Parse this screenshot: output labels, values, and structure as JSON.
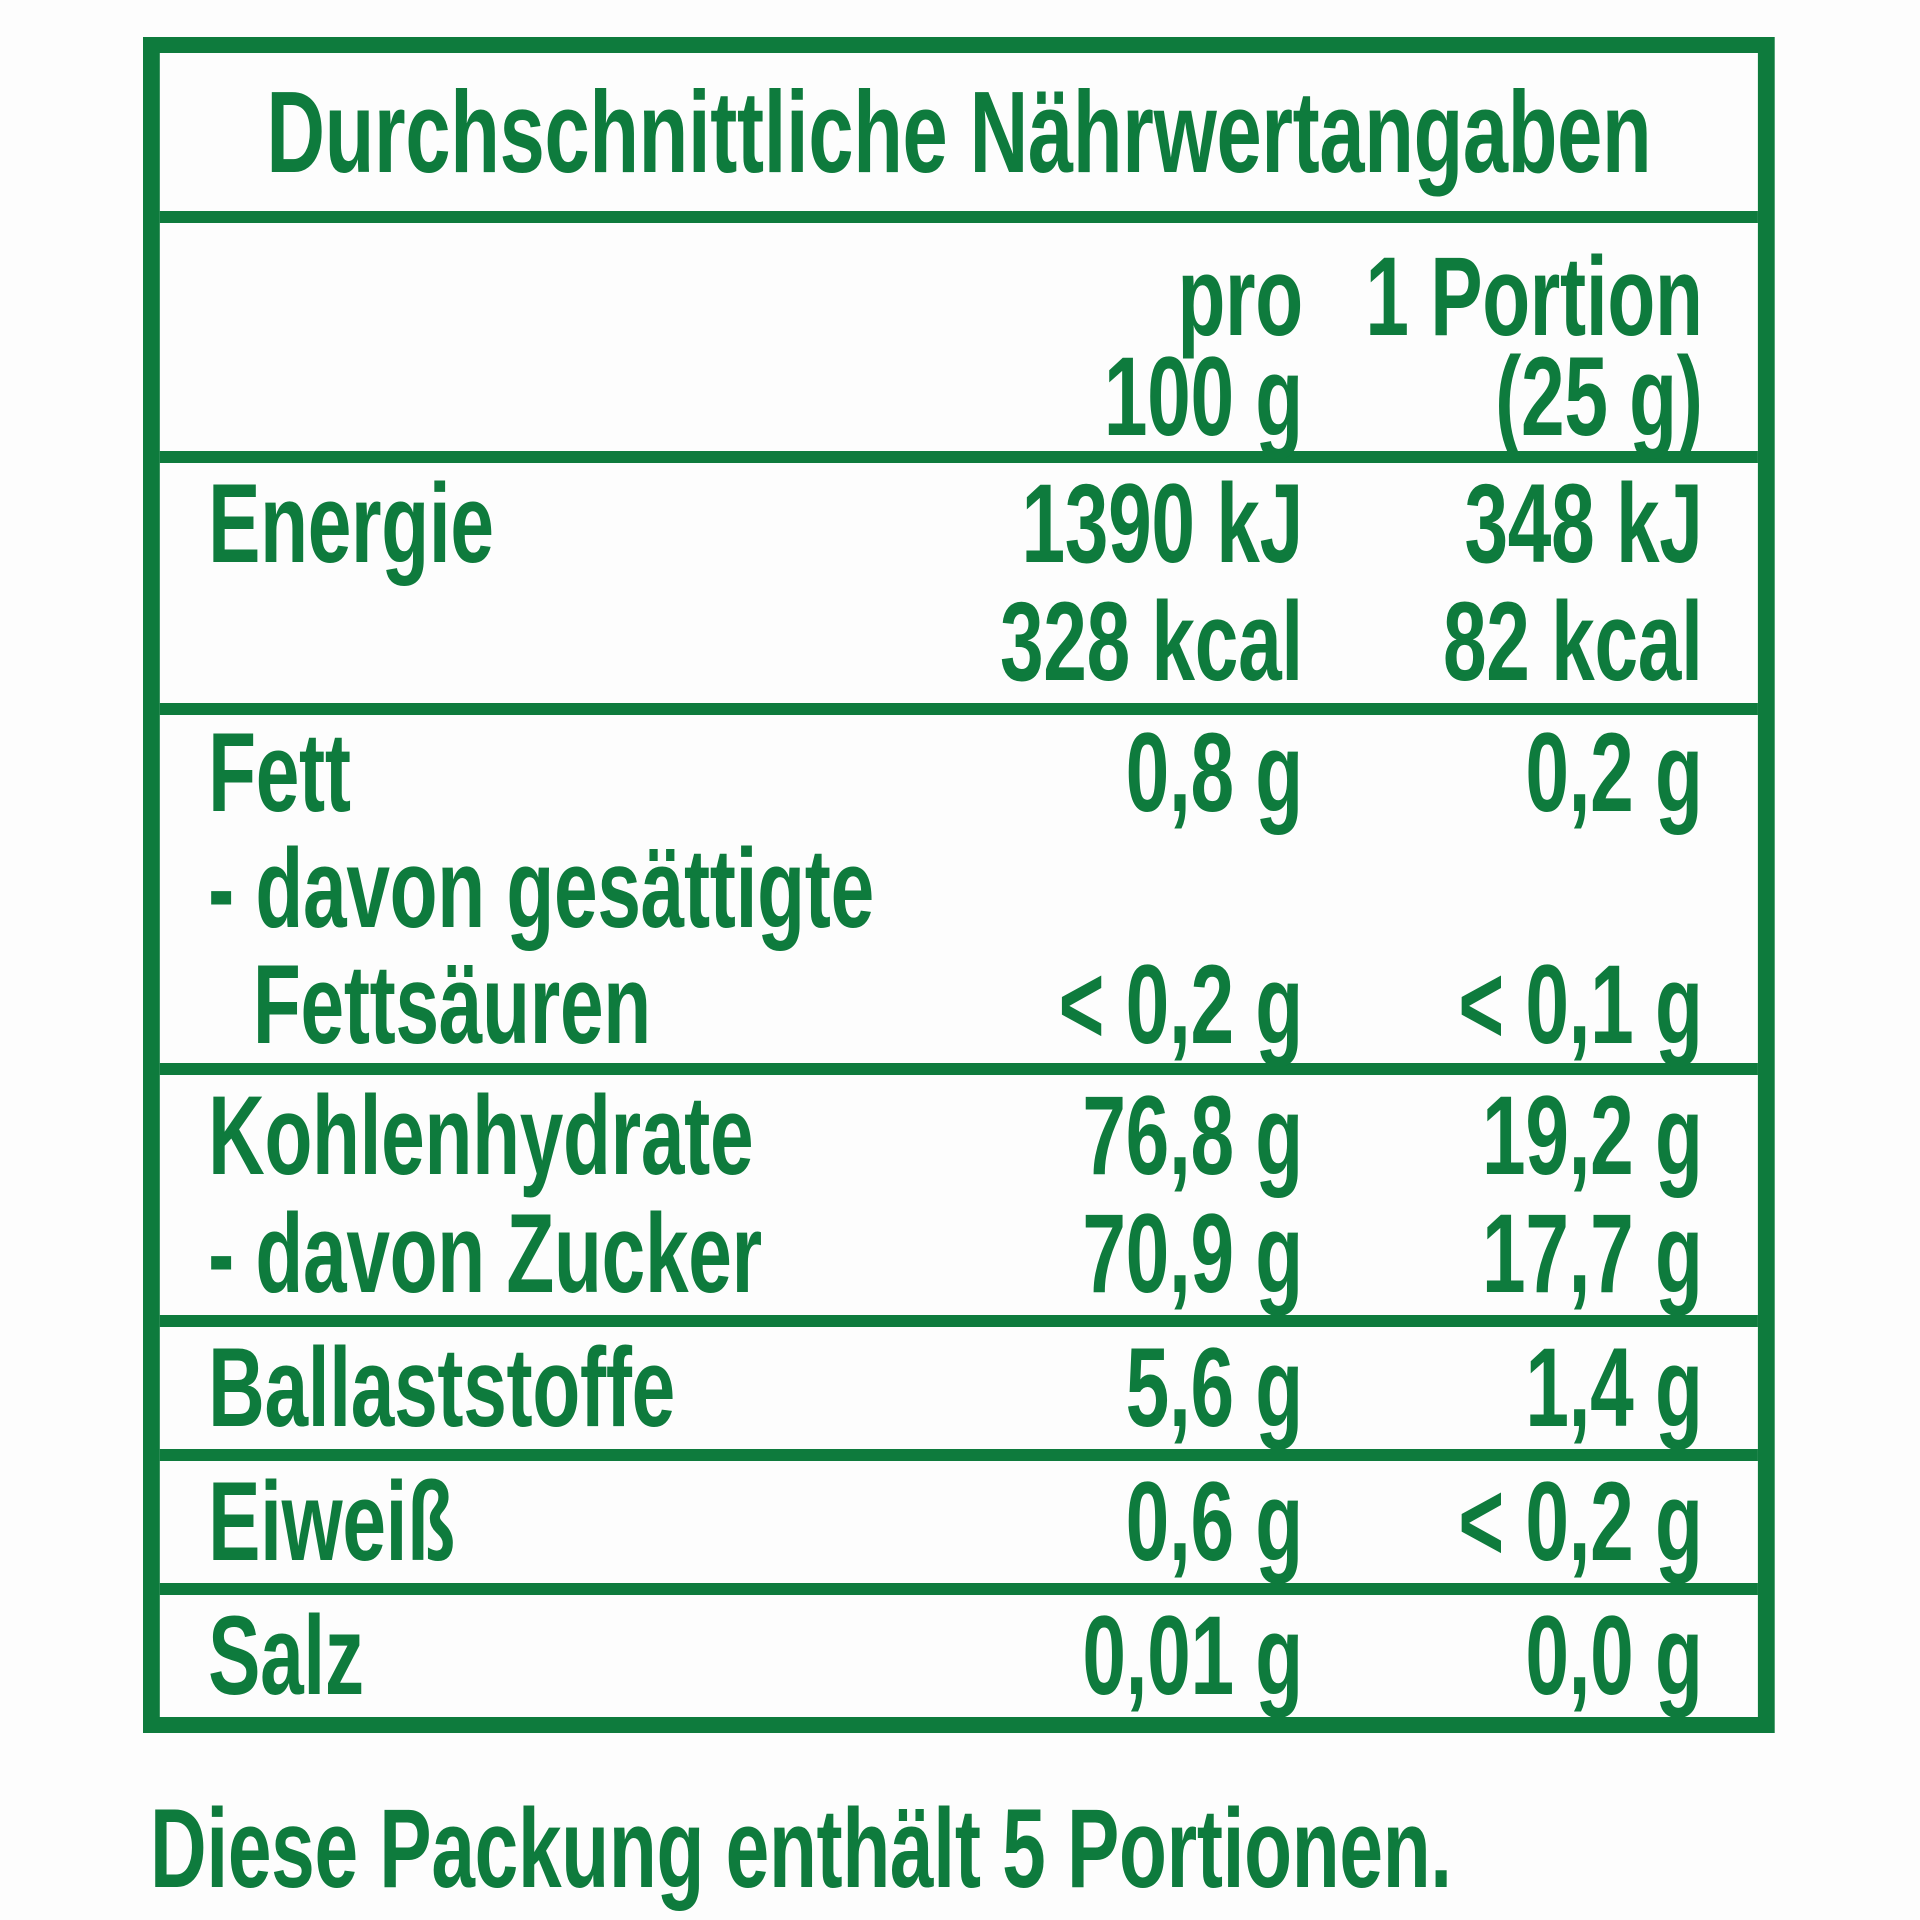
{
  "colors": {
    "green": "#0e7b3d",
    "background": "#fdfdfd"
  },
  "table": {
    "title": "Durchschnittliche Nährwertangaben",
    "header": {
      "col1_line1": "pro",
      "col1_line2": "100 g",
      "col2_line1": "1 Portion",
      "col2_line2": "(25 g)"
    },
    "sections": [
      {
        "rows": [
          {
            "label": "Energie",
            "per100": "1390 kJ",
            "portion": "348 kJ"
          },
          {
            "label": "",
            "per100": "328 kcal",
            "portion": "82 kcal"
          }
        ]
      },
      {
        "tight": true,
        "rows": [
          {
            "label": "Fett",
            "per100": "0,8 g",
            "portion": "0,2 g"
          },
          {
            "label": "- davon gesättigte",
            "per100": "",
            "portion": ""
          },
          {
            "label": "Fettsäuren",
            "indent": true,
            "per100": "< 0,2 g",
            "portion": "< 0,1 g"
          }
        ]
      },
      {
        "rows": [
          {
            "label": "Kohlenhydrate",
            "per100": "76,8 g",
            "portion": "19,2 g"
          },
          {
            "label": "- davon Zucker",
            "per100": "70,9 g",
            "portion": "17,7 g"
          }
        ]
      },
      {
        "rows": [
          {
            "label": "Ballaststoffe",
            "per100": "5,6 g",
            "portion": "1,4 g"
          }
        ]
      },
      {
        "rows": [
          {
            "label": "Eiweiß",
            "per100": "0,6 g",
            "portion": "< 0,2 g"
          }
        ]
      },
      {
        "rows": [
          {
            "label": "Salz",
            "per100": "0,01 g",
            "portion": "0,0 g"
          }
        ]
      }
    ]
  },
  "footer": {
    "text": "Diese Packung enthält 5 Portionen."
  }
}
